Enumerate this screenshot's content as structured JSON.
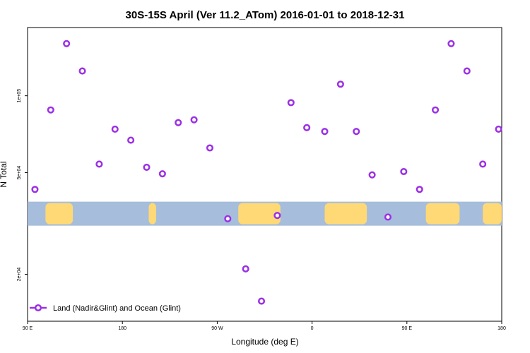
{
  "chart_data": {
    "type": "scatter",
    "title": "30S-15S April (Ver 11.2_ATom)   2016-01-01 to 2018-12-31",
    "xlabel": "Longitude (deg E)",
    "ylabel": "N Total",
    "x_tick_labels": [
      "90 E",
      "180",
      "90 W",
      "0",
      "90 E",
      "180"
    ],
    "x_ticks": [
      90,
      180,
      270,
      360,
      450,
      540
    ],
    "xlim": [
      90,
      540
    ],
    "y_scale": "log",
    "y_tick_labels": [
      "2e+04",
      "5e+04",
      "1e+05"
    ],
    "y_ticks": [
      20000,
      50000,
      100000
    ],
    "ylim": [
      13100,
      185000
    ],
    "legend": {
      "label": "Land (Nadir&Glint) and Ocean (Glint)",
      "position": "bottom-left"
    },
    "colors": {
      "series": "#9b30e6",
      "ocean": "#a6bddb",
      "land": "#fed976"
    },
    "background_map": {
      "band_y_range": [
        31000,
        38500
      ],
      "land_longitudes": [
        [
          107,
          133
        ],
        [
          205,
          212
        ],
        [
          290,
          330
        ],
        [
          372,
          412
        ],
        [
          468,
          500
        ],
        [
          522,
          542
        ]
      ]
    },
    "series": [
      {
        "x": [
          97,
          112,
          127,
          142,
          158,
          173,
          188,
          203,
          218,
          233,
          248,
          263,
          280,
          297,
          312,
          327,
          340,
          355,
          372,
          387,
          402,
          417,
          432,
          447,
          462,
          477,
          492,
          507,
          522,
          537
        ],
        "y": [
          43000,
          88000,
          160000,
          125000,
          54000,
          74000,
          67000,
          52500,
          49500,
          78500,
          80500,
          62500,
          33000,
          21000,
          15700,
          34000,
          94000,
          75000,
          72500,
          111000,
          72500,
          49000,
          33500,
          50500,
          43000,
          88000,
          160000,
          125000,
          54000,
          74000
        ]
      }
    ]
  }
}
